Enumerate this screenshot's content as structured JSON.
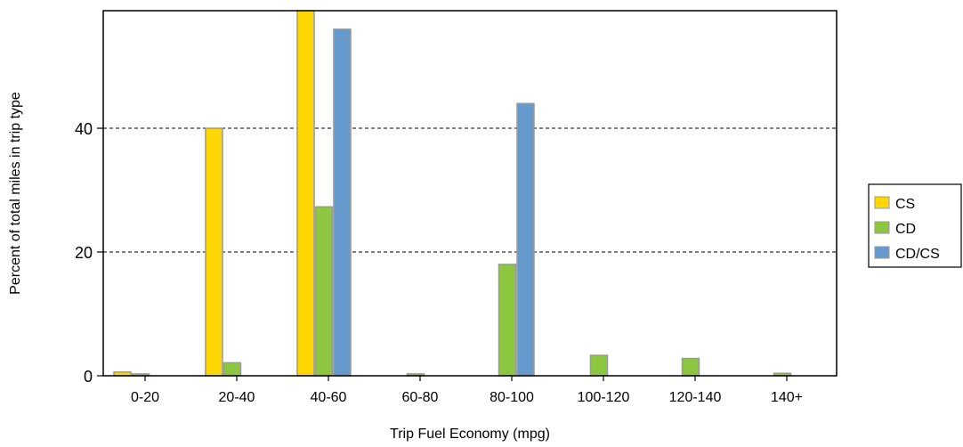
{
  "chart_data": {
    "type": "bar",
    "categories": [
      "0-20",
      "20-40",
      "40-60",
      "60-80",
      "80-100",
      "100-120",
      "120-140",
      "140+"
    ],
    "series": [
      {
        "name": "CS",
        "color": "#FFD700",
        "values": [
          0.6,
          40.0,
          59.0,
          0,
          0,
          0,
          0,
          0
        ]
      },
      {
        "name": "CD",
        "color": "#8DC63F",
        "values": [
          0.3,
          2.1,
          27.3,
          0.3,
          18.0,
          3.3,
          2.8,
          0.4
        ]
      },
      {
        "name": "CD/CS",
        "color": "#6699CC",
        "values": [
          0,
          0,
          56.0,
          0,
          44.0,
          0,
          0,
          0
        ]
      }
    ],
    "xlabel": "Trip Fuel Economy (mpg)",
    "ylabel": "Percent of total miles in trip type",
    "ylim": [
      0,
      59
    ],
    "yticks": [
      0,
      20,
      40
    ],
    "grid": "dashed horizontal at 20 and 40",
    "legend_position": "right",
    "bar_border_color": "#999999"
  }
}
